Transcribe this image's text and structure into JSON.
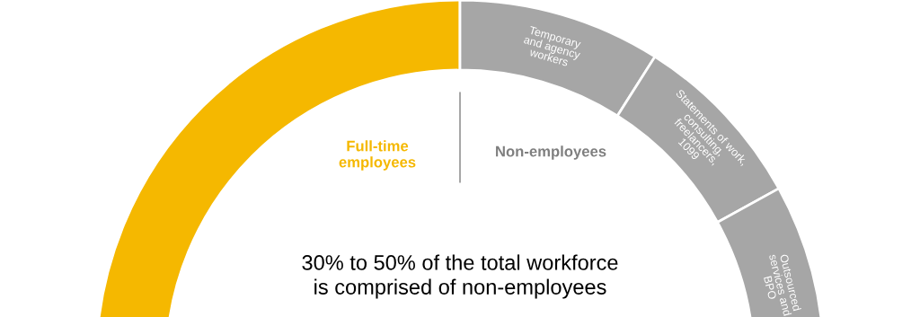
{
  "chart_data": {
    "type": "donut",
    "categories": [
      "Full-time employees",
      "Temporary and agency workers",
      "Statements of work, consulting, freelancers, 1099",
      "Outsourced services and BPO"
    ],
    "values": [
      50,
      9,
      8,
      33
    ],
    "colors": [
      "#f5b800",
      "#a6a6a6",
      "#a6a6a6",
      "#a6a6a6"
    ],
    "annotations": [
      "Non-employees",
      "30% to 50% of the total workforce is comprised of non-employees"
    ]
  }
}
